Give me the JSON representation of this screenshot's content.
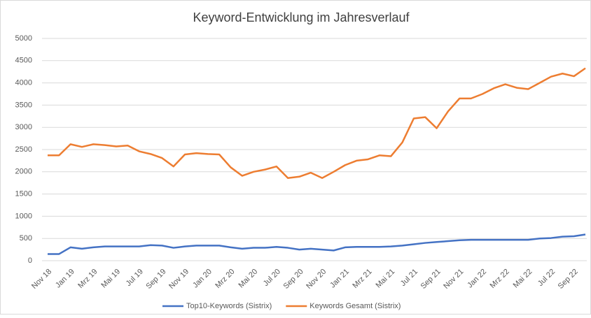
{
  "chart_data": {
    "type": "line",
    "title": "Keyword-Entwicklung im Jahresverlauf",
    "categories": [
      "Nov 18",
      null,
      "Jan 19",
      null,
      "Mrz 19",
      null,
      "Mai 19",
      null,
      "Jul 19",
      null,
      "Sep 19",
      null,
      "Nov 19",
      null,
      "Jan 20",
      null,
      "Mrz 20",
      null,
      "Mai 20",
      null,
      "Jul 20",
      null,
      "Sep 20",
      null,
      "Nov 20",
      null,
      "Jan 21",
      null,
      "Mrz 21",
      null,
      "Mai 21",
      null,
      "Jul 21",
      null,
      "Sep 21",
      null,
      "Nov 21",
      null,
      "Jan 22",
      null,
      "Mrz 22",
      null,
      "Mai 22",
      null,
      "Jul 22",
      null,
      "Sep 22",
      null
    ],
    "series": [
      {
        "name": "Top10-Keywords (Sistrix)",
        "color": "#4472c4",
        "values": [
          150,
          150,
          300,
          270,
          300,
          320,
          320,
          320,
          320,
          350,
          340,
          290,
          320,
          340,
          340,
          340,
          300,
          270,
          290,
          290,
          310,
          290,
          250,
          270,
          250,
          230,
          300,
          310,
          310,
          310,
          320,
          340,
          370,
          400,
          420,
          440,
          460,
          470,
          470,
          470,
          470,
          470,
          470,
          500,
          510,
          540,
          550,
          590
        ]
      },
      {
        "name": "Keywords Gesamt (Sistrix)",
        "color": "#ed7d31",
        "values": [
          2370,
          2370,
          2620,
          2560,
          2620,
          2600,
          2570,
          2590,
          2460,
          2400,
          2310,
          2120,
          2390,
          2420,
          2400,
          2390,
          2100,
          1910,
          2000,
          2050,
          2120,
          1860,
          1890,
          1980,
          1860,
          2000,
          2150,
          2250,
          2280,
          2370,
          2350,
          2660,
          3200,
          3230,
          2980,
          3360,
          3650,
          3650,
          3750,
          3880,
          3970,
          3890,
          3860,
          4000,
          4140,
          4210,
          4150,
          4330
        ]
      }
    ],
    "ylim": [
      0,
      5000
    ],
    "yticks": [
      0,
      500,
      1000,
      1500,
      2000,
      2500,
      3000,
      3500,
      4000,
      4500,
      5000
    ],
    "grid": true,
    "legend": "bottom"
  }
}
